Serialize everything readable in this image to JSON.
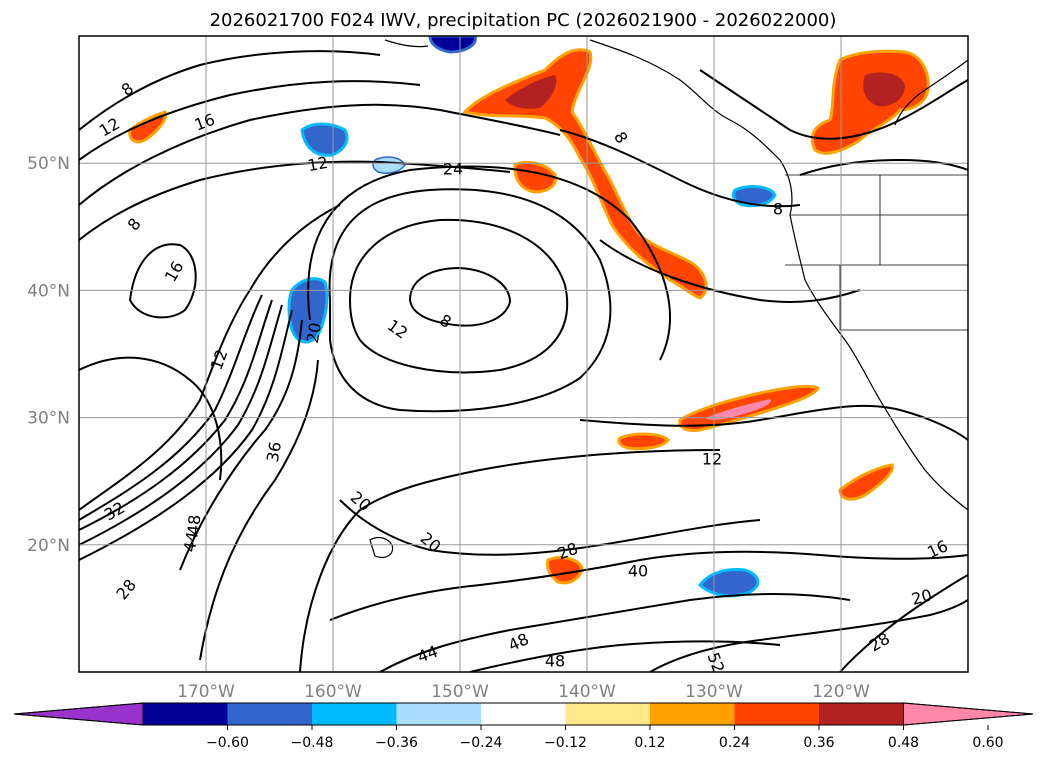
{
  "title": "2026021700 F024 IWV, precipitation PC (2026021900 - 2026022000)",
  "map": {
    "lon_range": [
      -180,
      -110
    ],
    "lat_range": [
      10,
      60
    ],
    "lat_labels": [
      "50°N",
      "40°N",
      "30°N",
      "20°N"
    ],
    "lon_labels": [
      "170°W",
      "160°W",
      "150°W",
      "140°W",
      "130°W",
      "120°W"
    ],
    "contour_labels": [
      "8",
      "12",
      "16",
      "24",
      "8",
      "8",
      "8",
      "16",
      "12",
      "20",
      "12",
      "8",
      "36",
      "20",
      "20",
      "12",
      "28",
      "40",
      "48",
      "44",
      "48",
      "52",
      "16",
      "20",
      "28",
      "32",
      "28",
      "44",
      "48",
      "12"
    ]
  },
  "colorbar": {
    "ticks": [
      "−0.60",
      "−0.48",
      "−0.36",
      "−0.24",
      "−0.12",
      "0.12",
      "0.24",
      "0.36",
      "0.48",
      "0.60"
    ],
    "colors": [
      "#9933cc",
      "#000099",
      "#3366cc",
      "#00bbff",
      "#aaddff",
      "#ffffff",
      "#ffe88a",
      "#ffa200",
      "#ff4400",
      "#b22222",
      "#ff88aa"
    ]
  }
}
